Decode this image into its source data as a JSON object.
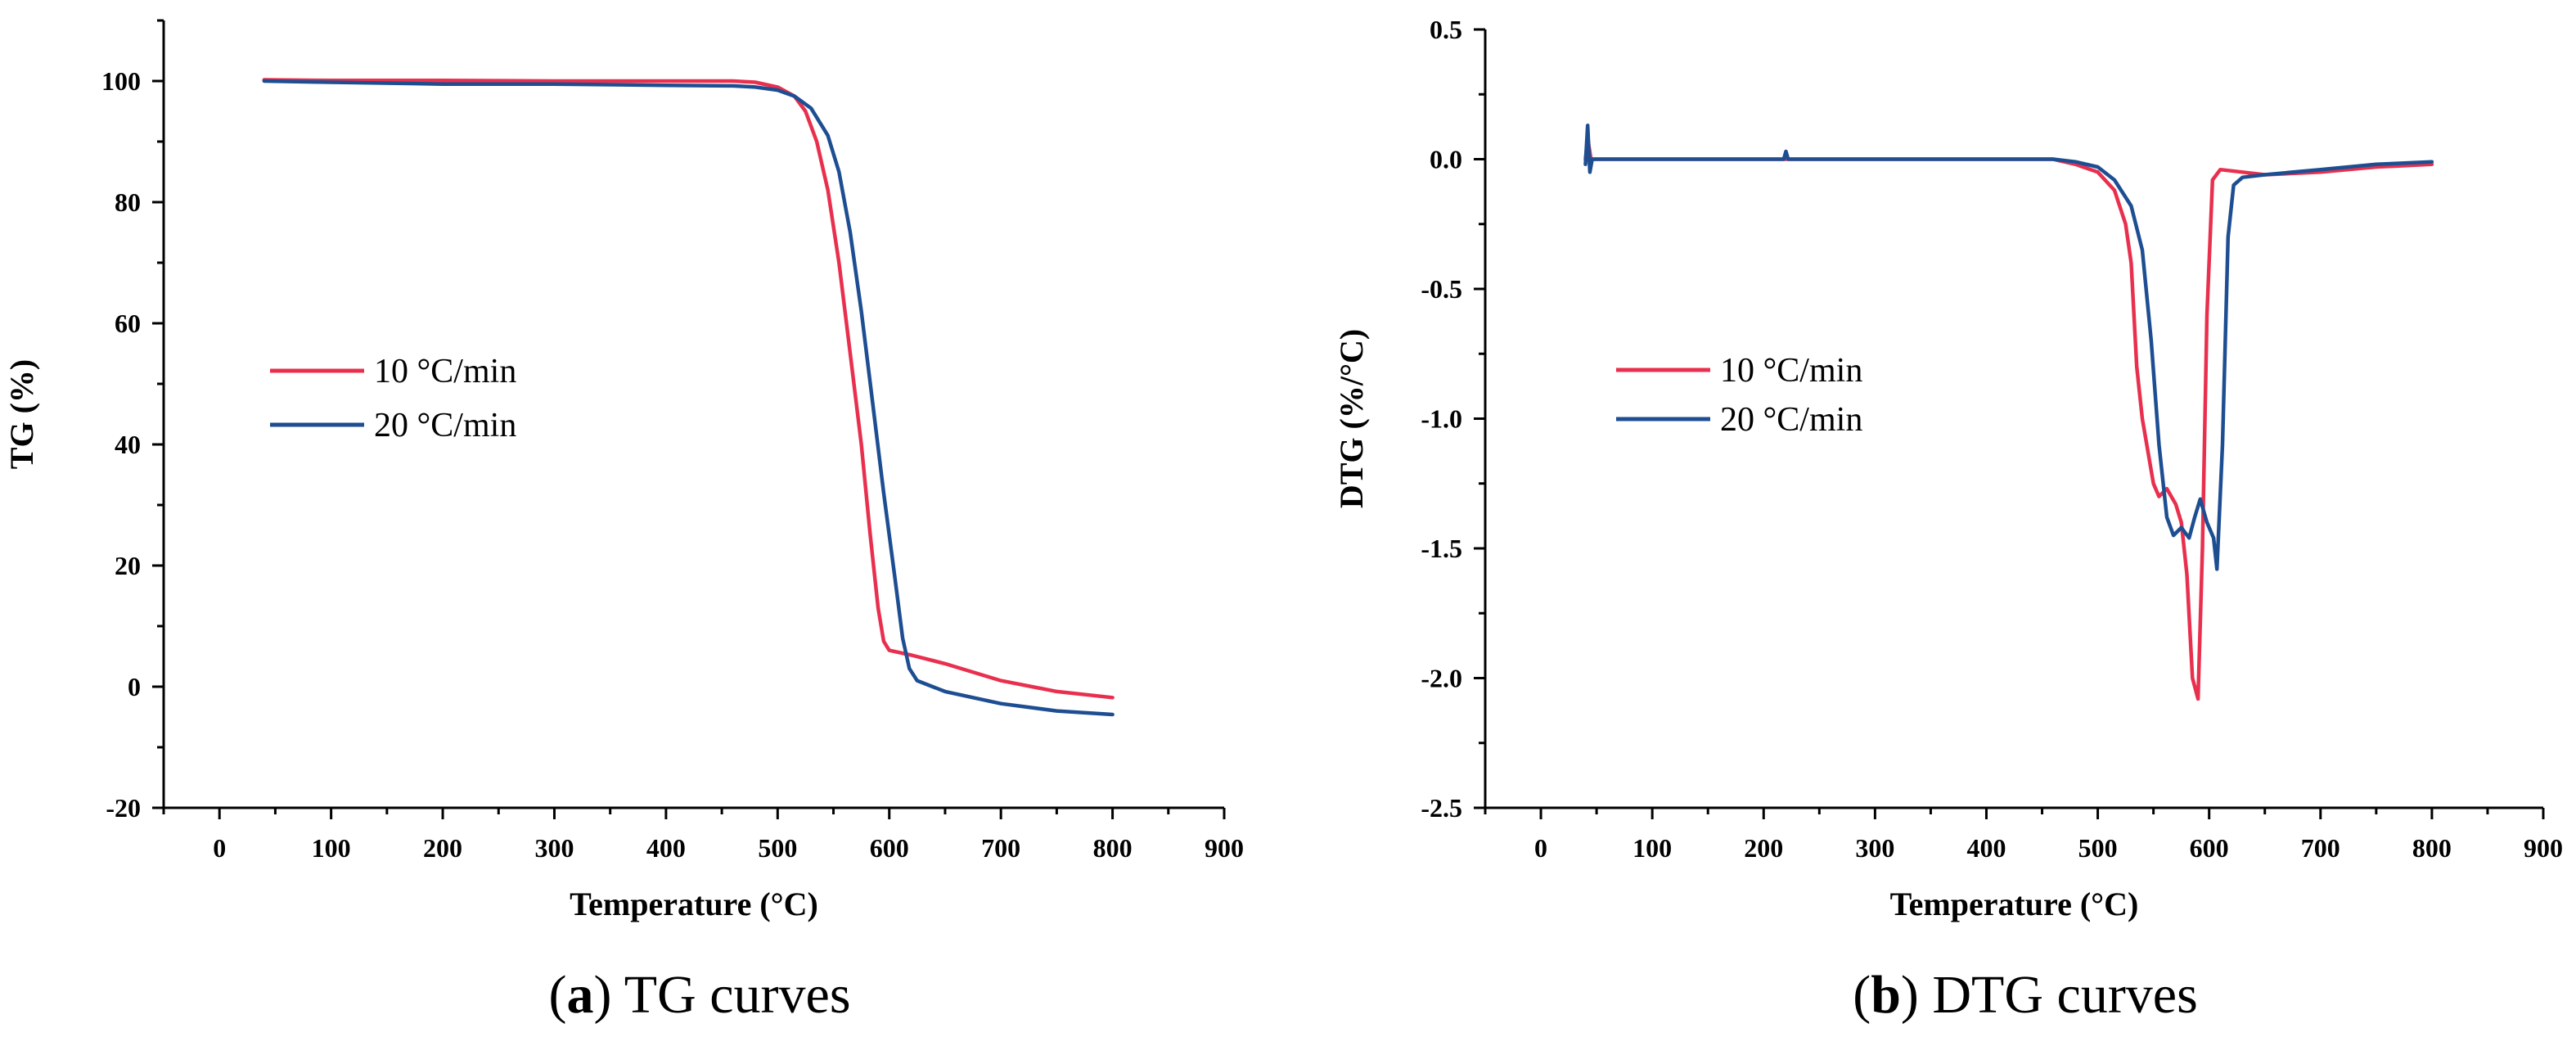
{
  "chart_data": [
    {
      "id": "a",
      "type": "line",
      "caption": {
        "open": "(",
        "letter": "a",
        "close": ")",
        "text": " TG curves"
      },
      "xlabel": "Temperature (°C)",
      "ylabel": "TG (%)",
      "xlim": [
        -50,
        900
      ],
      "ylim": [
        -20,
        110
      ],
      "xticks": [
        0,
        100,
        200,
        300,
        400,
        500,
        600,
        700,
        800,
        900
      ],
      "yticks": [
        -20,
        0,
        20,
        40,
        60,
        80,
        100
      ],
      "legend_position": "center-left",
      "series": [
        {
          "name": "10 °C/min",
          "color": "#e8304e",
          "points": [
            [
              40,
              100.2
            ],
            [
              100,
              100.1
            ],
            [
              200,
              100.1
            ],
            [
              300,
              100.0
            ],
            [
              400,
              100.0
            ],
            [
              460,
              100.0
            ],
            [
              480,
              99.8
            ],
            [
              500,
              99.0
            ],
            [
              515,
              97.5
            ],
            [
              525,
              95.0
            ],
            [
              535,
              90.0
            ],
            [
              545,
              82.0
            ],
            [
              555,
              70.0
            ],
            [
              565,
              55.0
            ],
            [
              575,
              40.0
            ],
            [
              583,
              25.0
            ],
            [
              590,
              13.0
            ],
            [
              595,
              7.5
            ],
            [
              600,
              6.0
            ],
            [
              620,
              5.2
            ],
            [
              650,
              3.8
            ],
            [
              700,
              1.0
            ],
            [
              750,
              -0.8
            ],
            [
              800,
              -1.8
            ]
          ]
        },
        {
          "name": "20 °C/min",
          "color": "#1e4e92",
          "points": [
            [
              40,
              100.0
            ],
            [
              100,
              99.8
            ],
            [
              200,
              99.5
            ],
            [
              300,
              99.5
            ],
            [
              400,
              99.3
            ],
            [
              460,
              99.2
            ],
            [
              480,
              99.0
            ],
            [
              500,
              98.5
            ],
            [
              515,
              97.5
            ],
            [
              530,
              95.5
            ],
            [
              545,
              91.0
            ],
            [
              555,
              85.0
            ],
            [
              565,
              75.0
            ],
            [
              575,
              62.0
            ],
            [
              585,
              47.0
            ],
            [
              595,
              32.0
            ],
            [
              605,
              18.0
            ],
            [
              612,
              8.0
            ],
            [
              618,
              3.0
            ],
            [
              625,
              1.0
            ],
            [
              650,
              -0.8
            ],
            [
              700,
              -2.8
            ],
            [
              750,
              -4.0
            ],
            [
              800,
              -4.6
            ]
          ]
        }
      ]
    },
    {
      "id": "b",
      "type": "line",
      "caption": {
        "open": "(",
        "letter": "b",
        "close": ")",
        "text": " DTG curves"
      },
      "xlabel": "Temperature (°C)",
      "ylabel": "DTG (%/°C)",
      "xlim": [
        -50,
        900
      ],
      "ylim": [
        -2.5,
        0.5
      ],
      "xticks": [
        0,
        100,
        200,
        300,
        400,
        500,
        600,
        700,
        800,
        900
      ],
      "yticks": [
        -2.5,
        -2.0,
        -1.5,
        -1.0,
        -0.5,
        0.0,
        0.5
      ],
      "ytick_labels": [
        "-2.5",
        "-2.0",
        "-1.5",
        "-1.0",
        "-0.5",
        "0.0",
        "0.5"
      ],
      "legend_position": "center-left",
      "series": [
        {
          "name": "10 °C/min",
          "color": "#e8304e",
          "points": [
            [
              40,
              0.0
            ],
            [
              42,
              0.08
            ],
            [
              45,
              0.0
            ],
            [
              100,
              0.0
            ],
            [
              200,
              0.0
            ],
            [
              300,
              0.0
            ],
            [
              400,
              0.0
            ],
            [
              460,
              0.0
            ],
            [
              480,
              -0.02
            ],
            [
              500,
              -0.05
            ],
            [
              515,
              -0.12
            ],
            [
              525,
              -0.25
            ],
            [
              530,
              -0.4
            ],
            [
              535,
              -0.8
            ],
            [
              540,
              -1.0
            ],
            [
              550,
              -1.25
            ],
            [
              555,
              -1.3
            ],
            [
              562,
              -1.27
            ],
            [
              570,
              -1.33
            ],
            [
              575,
              -1.4
            ],
            [
              580,
              -1.6
            ],
            [
              585,
              -2.0
            ],
            [
              590,
              -2.08
            ],
            [
              594,
              -1.5
            ],
            [
              598,
              -0.6
            ],
            [
              603,
              -0.08
            ],
            [
              610,
              -0.04
            ],
            [
              630,
              -0.05
            ],
            [
              650,
              -0.06
            ],
            [
              700,
              -0.05
            ],
            [
              750,
              -0.03
            ],
            [
              800,
              -0.02
            ]
          ]
        },
        {
          "name": "20 °C/min",
          "color": "#1e4e92",
          "points": [
            [
              40,
              -0.02
            ],
            [
              42,
              0.13
            ],
            [
              44,
              -0.05
            ],
            [
              46,
              0.0
            ],
            [
              100,
              0.0
            ],
            [
              200,
              0.0
            ],
            [
              218,
              0.0
            ],
            [
              220,
              0.03
            ],
            [
              222,
              0.0
            ],
            [
              300,
              0.0
            ],
            [
              400,
              0.0
            ],
            [
              460,
              0.0
            ],
            [
              480,
              -0.01
            ],
            [
              500,
              -0.03
            ],
            [
              515,
              -0.08
            ],
            [
              530,
              -0.18
            ],
            [
              540,
              -0.35
            ],
            [
              548,
              -0.7
            ],
            [
              555,
              -1.1
            ],
            [
              562,
              -1.38
            ],
            [
              568,
              -1.45
            ],
            [
              575,
              -1.42
            ],
            [
              582,
              -1.46
            ],
            [
              587,
              -1.38
            ],
            [
              592,
              -1.31
            ],
            [
              598,
              -1.4
            ],
            [
              604,
              -1.46
            ],
            [
              607,
              -1.58
            ],
            [
              612,
              -1.1
            ],
            [
              617,
              -0.3
            ],
            [
              622,
              -0.1
            ],
            [
              630,
              -0.07
            ],
            [
              650,
              -0.06
            ],
            [
              700,
              -0.04
            ],
            [
              750,
              -0.02
            ],
            [
              800,
              -0.01
            ]
          ]
        }
      ]
    }
  ]
}
